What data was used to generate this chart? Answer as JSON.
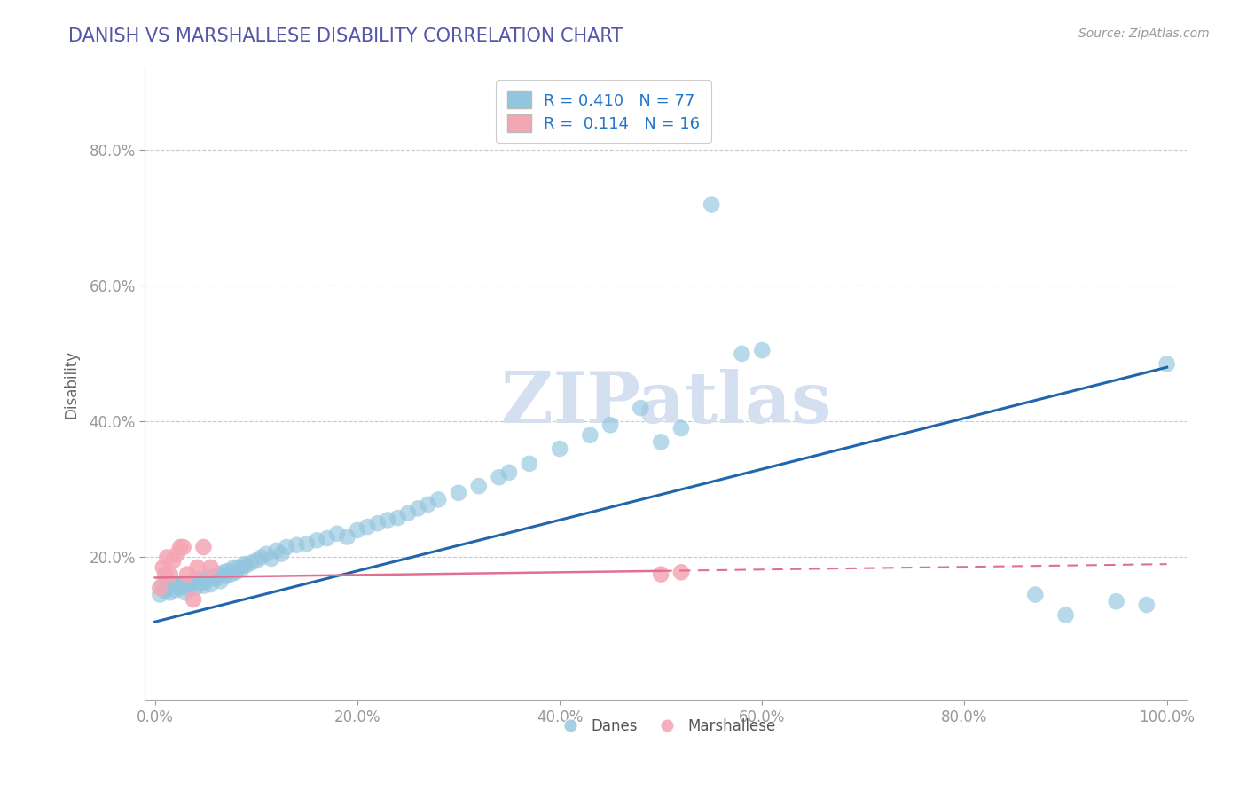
{
  "title": "DANISH VS MARSHALLESE DISABILITY CORRELATION CHART",
  "source": "Source: ZipAtlas.com",
  "ylabel": "Disability",
  "danes_R": 0.41,
  "danes_N": 77,
  "marshallese_R": 0.114,
  "marshallese_N": 16,
  "blue_color": "#92c5de",
  "pink_color": "#f4a6b5",
  "blue_line_color": "#2166ac",
  "pink_line_color": "#e07090",
  "grid_color": "#c8c8d8",
  "title_color": "#5555aa",
  "watermark_color": "#d4dff0",
  "xlim": [
    -0.01,
    1.02
  ],
  "ylim": [
    -0.01,
    0.92
  ],
  "xtick_labels": [
    "0.0%",
    "20.0%",
    "40.0%",
    "60.0%",
    "80.0%",
    "100.0%"
  ],
  "ytick_labels": [
    "20.0%",
    "40.0%",
    "60.0%",
    "80.0%"
  ],
  "xtick_vals": [
    0.0,
    0.2,
    0.4,
    0.6,
    0.8,
    1.0
  ],
  "ytick_vals": [
    0.2,
    0.4,
    0.6,
    0.8
  ],
  "danes_x": [
    0.005,
    0.008,
    0.01,
    0.012,
    0.015,
    0.018,
    0.02,
    0.022,
    0.025,
    0.028,
    0.03,
    0.032,
    0.035,
    0.038,
    0.04,
    0.042,
    0.045,
    0.048,
    0.05,
    0.052,
    0.055,
    0.058,
    0.06,
    0.063,
    0.065,
    0.068,
    0.07,
    0.072,
    0.075,
    0.078,
    0.08,
    0.082,
    0.085,
    0.088,
    0.09,
    0.095,
    0.1,
    0.105,
    0.11,
    0.115,
    0.12,
    0.125,
    0.13,
    0.14,
    0.15,
    0.16,
    0.17,
    0.18,
    0.19,
    0.2,
    0.21,
    0.22,
    0.23,
    0.24,
    0.25,
    0.26,
    0.27,
    0.28,
    0.3,
    0.32,
    0.34,
    0.35,
    0.37,
    0.4,
    0.43,
    0.45,
    0.48,
    0.5,
    0.52,
    0.55,
    0.58,
    0.6,
    0.87,
    0.9,
    0.95,
    0.98,
    1.0
  ],
  "danes_y": [
    0.145,
    0.16,
    0.15,
    0.155,
    0.148,
    0.16,
    0.152,
    0.158,
    0.155,
    0.162,
    0.148,
    0.155,
    0.16,
    0.165,
    0.155,
    0.168,
    0.162,
    0.158,
    0.165,
    0.17,
    0.16,
    0.172,
    0.168,
    0.175,
    0.165,
    0.178,
    0.172,
    0.18,
    0.175,
    0.185,
    0.178,
    0.185,
    0.182,
    0.19,
    0.188,
    0.192,
    0.195,
    0.2,
    0.205,
    0.198,
    0.21,
    0.205,
    0.215,
    0.218,
    0.22,
    0.225,
    0.228,
    0.235,
    0.23,
    0.24,
    0.245,
    0.25,
    0.255,
    0.258,
    0.265,
    0.272,
    0.278,
    0.285,
    0.295,
    0.305,
    0.318,
    0.325,
    0.338,
    0.36,
    0.38,
    0.395,
    0.42,
    0.37,
    0.39,
    0.72,
    0.5,
    0.505,
    0.145,
    0.115,
    0.135,
    0.13,
    0.485
  ],
  "marshallese_x": [
    0.005,
    0.008,
    0.01,
    0.012,
    0.015,
    0.018,
    0.022,
    0.025,
    0.028,
    0.032,
    0.038,
    0.042,
    0.048,
    0.055,
    0.5,
    0.52
  ],
  "marshallese_y": [
    0.155,
    0.185,
    0.175,
    0.2,
    0.175,
    0.195,
    0.205,
    0.215,
    0.215,
    0.175,
    0.138,
    0.185,
    0.215,
    0.185,
    0.175,
    0.178
  ]
}
